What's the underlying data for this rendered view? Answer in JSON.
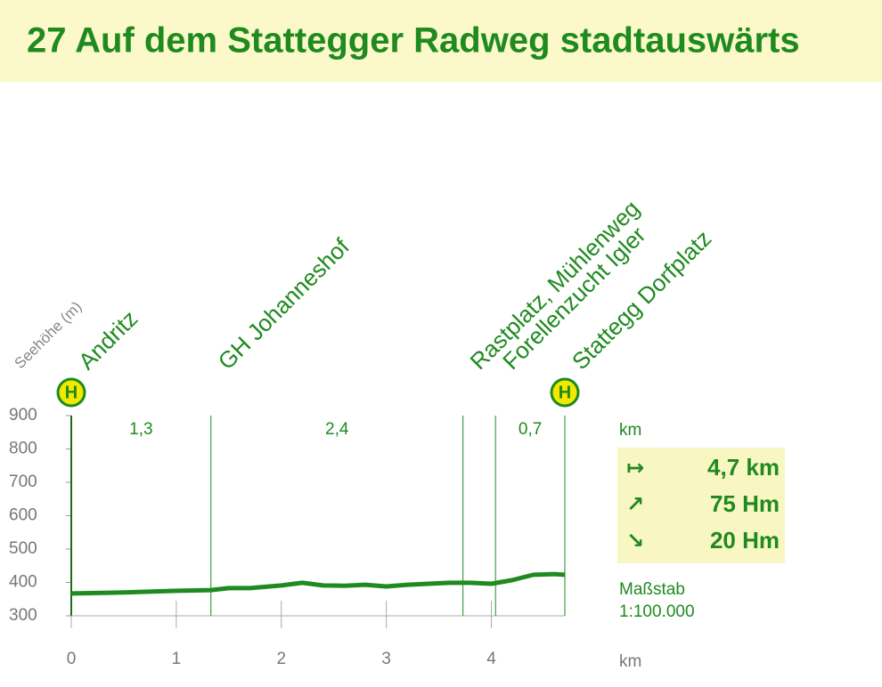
{
  "chart_data": {
    "type": "line",
    "title": "27  Auf dem Stattegger Radweg stadtauswärts",
    "y_label": "Seehöhe (m)",
    "x_unit": "km",
    "xlim": [
      0,
      4.7
    ],
    "ylim": [
      300,
      900
    ],
    "xticks": [
      0,
      1,
      2,
      3,
      4
    ],
    "yticks": [
      300,
      400,
      500,
      600,
      700,
      800,
      900
    ],
    "x": [
      0,
      0.5,
      1.0,
      1.33,
      1.5,
      1.7,
      2.0,
      2.2,
      2.4,
      2.6,
      2.8,
      3.0,
      3.2,
      3.4,
      3.6,
      3.8,
      4.0,
      4.2,
      4.4,
      4.6,
      4.7
    ],
    "values": [
      367,
      370,
      375,
      377,
      383,
      383,
      391,
      399,
      391,
      390,
      393,
      388,
      393,
      396,
      399,
      399,
      396,
      407,
      423,
      425,
      423
    ],
    "color": "#1f8a1f",
    "waypoints": [
      {
        "x": 0,
        "label": "Andritz",
        "stop": "H"
      },
      {
        "x": 1.33,
        "label": "GH Johanneshof"
      },
      {
        "x": 3.73,
        "label": "Rastplatz, Mühlenweg"
      },
      {
        "x": 4.04,
        "label": "Forellenzucht Igler"
      },
      {
        "x": 4.7,
        "label": "Stattegg Dorfplatz",
        "stop": "H"
      }
    ],
    "segments": [
      {
        "start": 0,
        "end": 1.33,
        "value": 1.3,
        "label": "1,3"
      },
      {
        "start": 1.33,
        "end": 3.73,
        "value": 2.4,
        "label": "2,4"
      },
      {
        "start": 4.04,
        "end": 4.7,
        "value": 0.7,
        "label": "0,7"
      }
    ],
    "summary_unit": "km",
    "summary": [
      {
        "symbol": "↦",
        "value": 4.7,
        "label": "4,7 km"
      },
      {
        "symbol": "↗",
        "value": 75,
        "label": "75 Hm"
      },
      {
        "symbol": "↘",
        "value": 20,
        "label": "20 Hm"
      }
    ],
    "scale_title": "Maßstab",
    "scale": "1:100.000"
  }
}
